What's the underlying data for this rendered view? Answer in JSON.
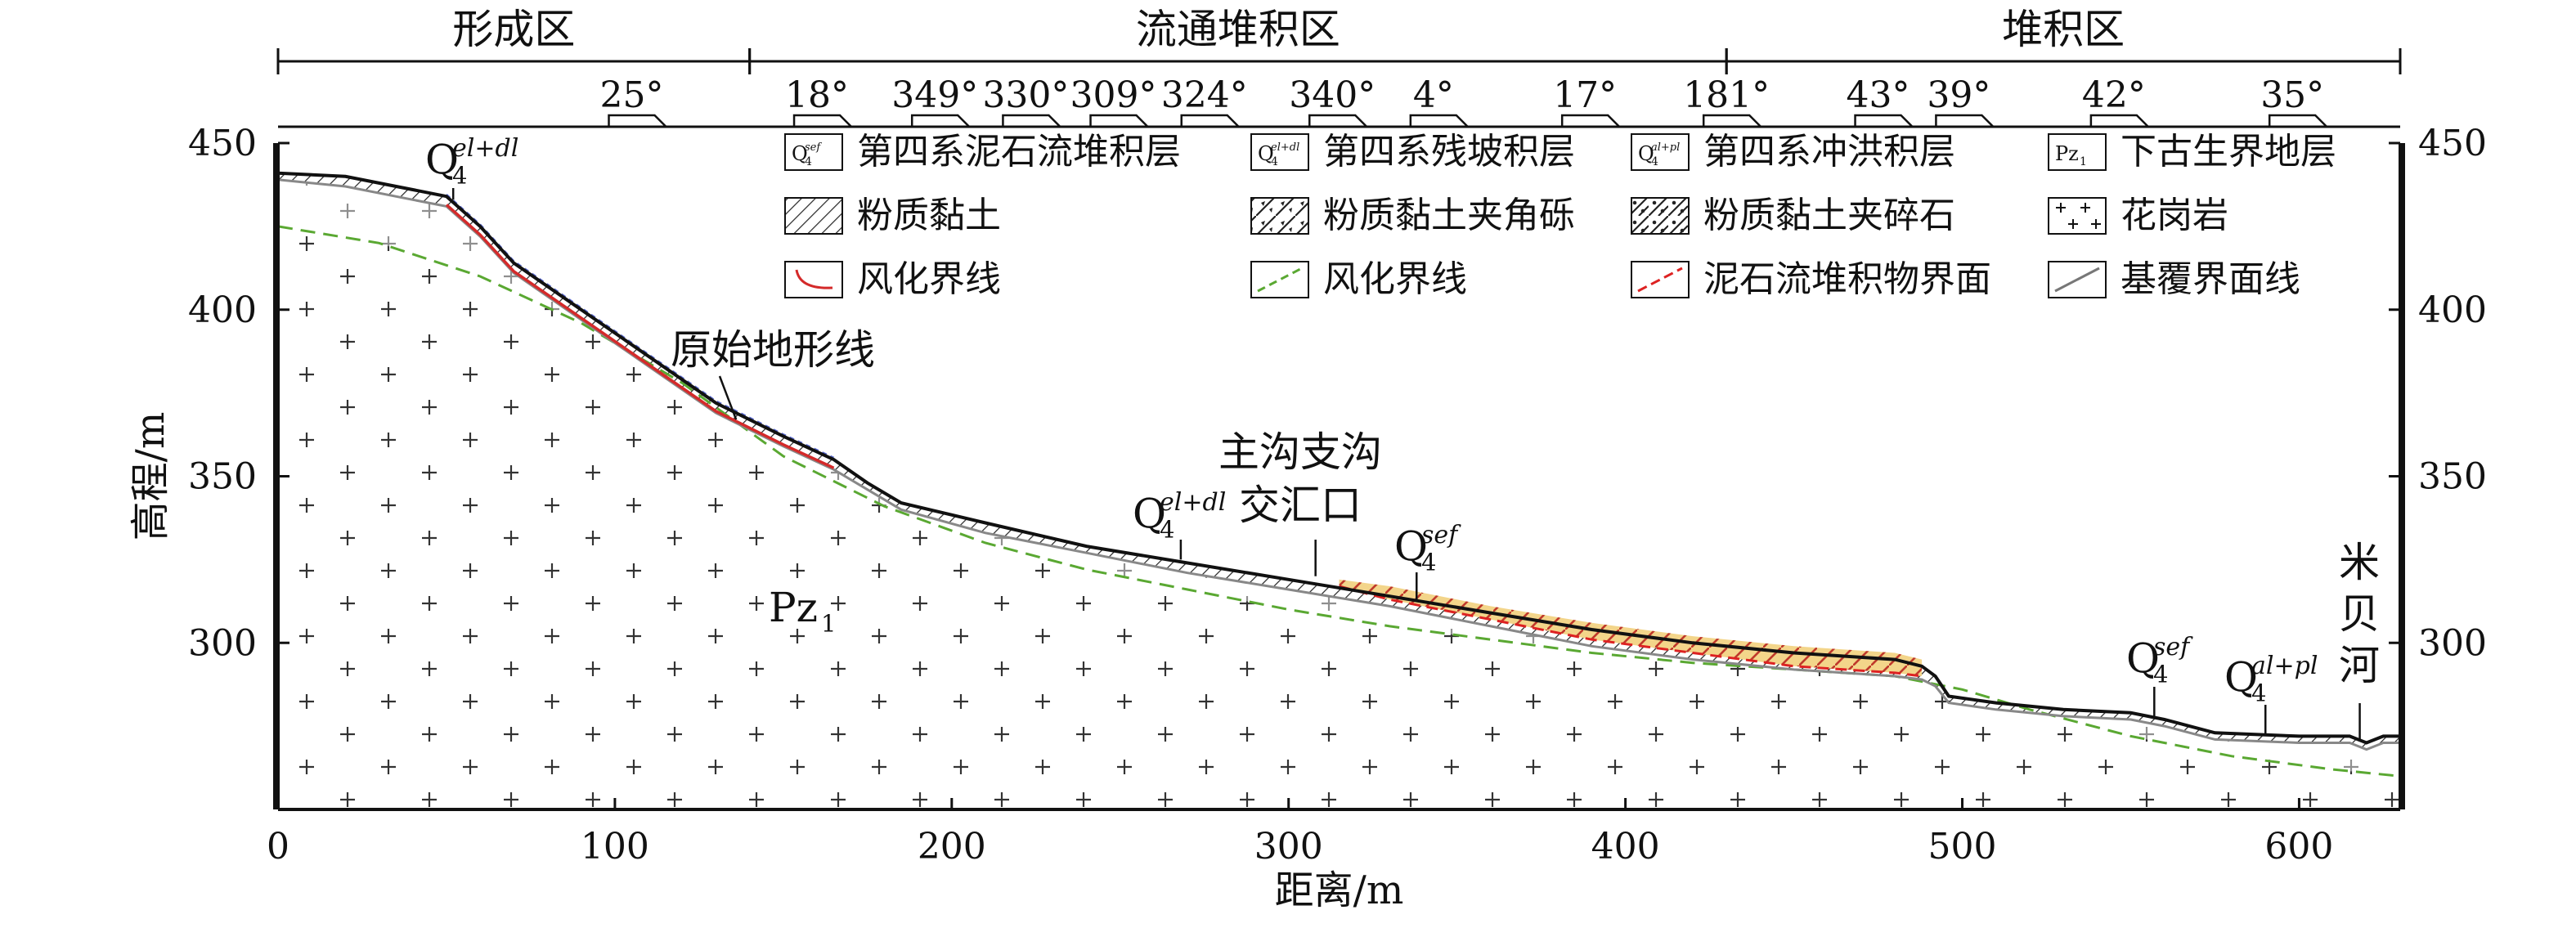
{
  "zones": [
    {
      "label": "形成区",
      "x_from": 0,
      "x_to": 140
    },
    {
      "label": "流通堆积区",
      "x_from": 140,
      "x_to": 430
    },
    {
      "label": "堆积区",
      "x_from": 430,
      "x_to": 630
    }
  ],
  "slope_angles": [
    {
      "label": "25°",
      "x": 105
    },
    {
      "label": "18°",
      "x": 160
    },
    {
      "label": "349°",
      "x": 195
    },
    {
      "label": "330°",
      "x": 222
    },
    {
      "label": "309°",
      "x": 248
    },
    {
      "label": "324°",
      "x": 275
    },
    {
      "label": "340°",
      "x": 313
    },
    {
      "label": "4°",
      "x": 343
    },
    {
      "label": "17°",
      "x": 388
    },
    {
      "label": "181°",
      "x": 430
    },
    {
      "label": "43°",
      "x": 475
    },
    {
      "label": "39°",
      "x": 499
    },
    {
      "label": "42°",
      "x": 545
    },
    {
      "label": "35°",
      "x": 598
    }
  ],
  "axes": {
    "x_title": "距离/m",
    "y_title": "高程/m",
    "x_ticks": [
      "0",
      "100",
      "200",
      "300",
      "400",
      "500",
      "600"
    ],
    "y_ticks_left": [
      "300",
      "350",
      "400",
      "450"
    ],
    "y_ticks_right": [
      "300",
      "350",
      "400",
      "450"
    ],
    "x_range": [
      0,
      630
    ],
    "y_range": [
      250,
      450
    ]
  },
  "legend": [
    {
      "symbol": "Q4sef",
      "code": "Q",
      "sub": "4",
      "sup": "sef",
      "label": "第四系泥石流堆积层"
    },
    {
      "symbol": "Q4eldl",
      "code": "Q",
      "sub": "4",
      "sup": "el+dl",
      "label": "第四系残坡积层"
    },
    {
      "symbol": "Q4alpl",
      "code": "Q",
      "sub": "4",
      "sup": "al+pl",
      "label": "第四系冲洪积层"
    },
    {
      "symbol": "Pz1",
      "code": "Pz",
      "sub": "1",
      "label": "下古生界地层"
    },
    {
      "symbol": "silty-clay",
      "label": "粉质黏土"
    },
    {
      "symbol": "silty-clay-breccia",
      "label": "粉质黏土夹角砾"
    },
    {
      "symbol": "silty-clay-gravel",
      "label": "粉质黏土夹碎石"
    },
    {
      "symbol": "granite",
      "label": "花岗岩"
    },
    {
      "symbol": "weathering-red",
      "label": "风化界线"
    },
    {
      "symbol": "weathering-green",
      "label": "风化界线"
    },
    {
      "symbol": "debris-boundary",
      "label": "泥石流堆积物界面"
    },
    {
      "symbol": "bedrock-line",
      "label": "基覆界面线"
    }
  ],
  "annotations": [
    {
      "id": "q4eldl-top",
      "code": "Q",
      "sub": "4",
      "sup": "el+dl"
    },
    {
      "id": "original-terrain",
      "text": "原始地形线"
    },
    {
      "id": "junction-1",
      "text": "主沟支沟"
    },
    {
      "id": "junction-2",
      "text": "交汇口"
    },
    {
      "id": "q4eldl-mid",
      "code": "Q",
      "sub": "4",
      "sup": "el+dl"
    },
    {
      "id": "q4sef-mid",
      "code": "Q",
      "sub": "4",
      "sup": "sef"
    },
    {
      "id": "pz1",
      "code": "Pz",
      "sub": "1"
    },
    {
      "id": "q4sef-right",
      "code": "Q",
      "sub": "4",
      "sup": "sef"
    },
    {
      "id": "q4alpl-right",
      "code": "Q",
      "sub": "4",
      "sup": "al+pl"
    },
    {
      "id": "river-1",
      "text": "米"
    },
    {
      "id": "river-2",
      "text": "贝"
    },
    {
      "id": "river-3",
      "text": "河"
    }
  ],
  "profile": {
    "surface": [
      [
        0,
        441
      ],
      [
        20,
        440
      ],
      [
        40,
        436
      ],
      [
        50,
        434
      ],
      [
        60,
        425
      ],
      [
        70,
        414
      ],
      [
        90,
        400
      ],
      [
        110,
        386
      ],
      [
        130,
        372
      ],
      [
        150,
        362
      ],
      [
        165,
        355
      ],
      [
        175,
        348
      ],
      [
        185,
        342
      ],
      [
        210,
        336
      ],
      [
        240,
        329
      ],
      [
        270,
        324
      ],
      [
        300,
        319
      ],
      [
        330,
        314
      ],
      [
        360,
        309
      ],
      [
        390,
        304
      ],
      [
        420,
        300
      ],
      [
        450,
        297
      ],
      [
        480,
        295
      ],
      [
        488,
        293
      ],
      [
        492,
        290
      ],
      [
        496,
        284
      ],
      [
        510,
        282
      ],
      [
        530,
        280
      ],
      [
        550,
        279
      ],
      [
        560,
        277
      ],
      [
        575,
        273
      ],
      [
        600,
        272
      ],
      [
        615,
        272
      ],
      [
        620,
        270
      ],
      [
        625,
        272
      ],
      [
        630,
        272
      ]
    ],
    "bedrock_line": [
      [
        0,
        439
      ],
      [
        20,
        437
      ],
      [
        40,
        433
      ],
      [
        50,
        431
      ],
      [
        60,
        422
      ],
      [
        70,
        411
      ],
      [
        90,
        397
      ],
      [
        110,
        383
      ],
      [
        130,
        369
      ],
      [
        150,
        359
      ],
      [
        165,
        352
      ],
      [
        175,
        346
      ],
      [
        185,
        340
      ],
      [
        210,
        333
      ],
      [
        240,
        327
      ],
      [
        270,
        321
      ],
      [
        300,
        316
      ],
      [
        330,
        311
      ],
      [
        360,
        305
      ],
      [
        390,
        299
      ],
      [
        420,
        295
      ],
      [
        450,
        292
      ],
      [
        480,
        290
      ],
      [
        488,
        289
      ],
      [
        492,
        287
      ],
      [
        496,
        282
      ],
      [
        510,
        280
      ],
      [
        530,
        278
      ],
      [
        550,
        277
      ],
      [
        560,
        275
      ],
      [
        575,
        271
      ],
      [
        600,
        270
      ],
      [
        615,
        270
      ],
      [
        620,
        268
      ],
      [
        625,
        270
      ],
      [
        630,
        270
      ]
    ],
    "weathering_green": [
      [
        0,
        425
      ],
      [
        30,
        420
      ],
      [
        60,
        410
      ],
      [
        90,
        396
      ],
      [
        120,
        378
      ],
      [
        150,
        356
      ],
      [
        180,
        341
      ],
      [
        210,
        330
      ],
      [
        240,
        322
      ],
      [
        270,
        316
      ],
      [
        300,
        310
      ],
      [
        330,
        305
      ],
      [
        360,
        301
      ],
      [
        390,
        297
      ],
      [
        420,
        294
      ],
      [
        450,
        292
      ],
      [
        480,
        290
      ],
      [
        500,
        286
      ],
      [
        520,
        280
      ],
      [
        550,
        272
      ],
      [
        580,
        266
      ],
      [
        610,
        262
      ],
      [
        630,
        260
      ]
    ],
    "debris_top": [
      [
        315,
        319
      ],
      [
        330,
        317
      ],
      [
        360,
        311
      ],
      [
        390,
        306
      ],
      [
        420,
        302
      ],
      [
        450,
        299
      ],
      [
        480,
        297
      ],
      [
        488,
        295
      ]
    ],
    "debris_bottom": [
      [
        315,
        317
      ],
      [
        330,
        313
      ],
      [
        360,
        307
      ],
      [
        390,
        301
      ],
      [
        420,
        297
      ],
      [
        450,
        293
      ],
      [
        480,
        291
      ],
      [
        488,
        290
      ]
    ]
  }
}
